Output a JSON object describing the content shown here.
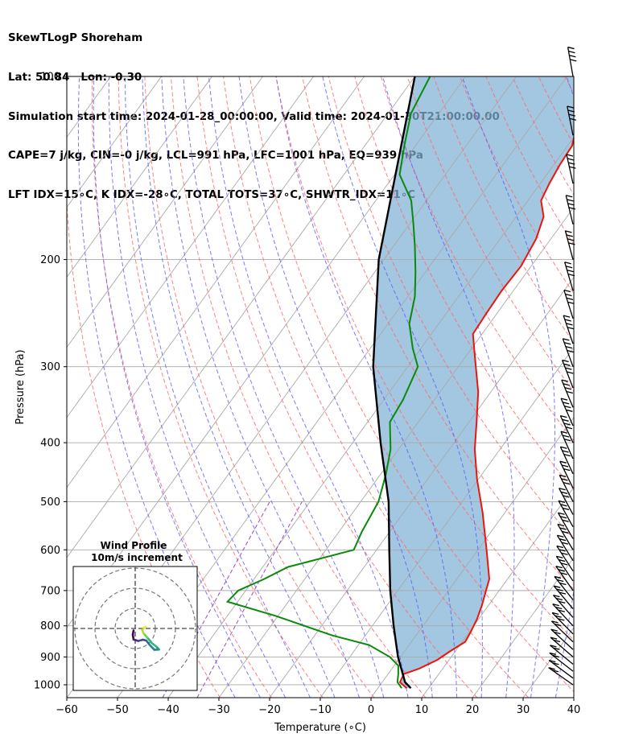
{
  "header": {
    "line1": "SkewTLogP Shoreham",
    "line2": "Lat: 50.84   Lon: -0.30",
    "line3": "Simulation start time: 2024-01-28_00:00:00, Valid time: 2024-01-30T21:00:00.00",
    "line4": "CAPE=7 j/kg, CIN=-0 j/kg, LCL=991 hPa, LFC=1001 hPa, EQ=939 hPa",
    "line5": "LFT IDX=15∘C, K IDX=-28∘C, TOTAL TOTS=37∘C, SHWTR_IDX=11∘C"
  },
  "chart_data": {
    "type": "line",
    "subtype": "skew-T log-P sounding",
    "xlabel": "Temperature (∘C)",
    "ylabel": "Pressure (hPa)",
    "xlim": [
      -60,
      40
    ],
    "ylim": [
      1050,
      100
    ],
    "y_scale": "log",
    "x_ticks": [
      -60,
      -50,
      -40,
      -30,
      -20,
      -10,
      0,
      10,
      20,
      30,
      40
    ],
    "y_ticks": [
      100,
      200,
      300,
      400,
      500,
      600,
      700,
      800,
      900,
      1000
    ],
    "grid": true,
    "colors": {
      "temperature": "#e8160c",
      "dewpoint": "#0a8a0a",
      "parcel": "#000000",
      "cape_fill": "#7fb0d6",
      "dry_adiabat": "#ff6a6a",
      "moist_adiabat": "#5a5aff",
      "mixing_ratio": "#9a4bc8",
      "isotherm": "#aaaaaa"
    },
    "series": [
      {
        "key": "temperature",
        "points": [
          [
            5.7,
            1013
          ],
          [
            3.5,
            990
          ],
          [
            3.1,
            960
          ],
          [
            5.4,
            940
          ],
          [
            7.7,
            910
          ],
          [
            9.0,
            880
          ],
          [
            10.6,
            850
          ],
          [
            10.3,
            820
          ],
          [
            9.7,
            780
          ],
          [
            8.7,
            740
          ],
          [
            7.4,
            700
          ],
          [
            6.4,
            670
          ],
          [
            1.7,
            600
          ],
          [
            -4.5,
            520
          ],
          [
            -10.2,
            460
          ],
          [
            -15.0,
            410
          ],
          [
            -18.5,
            370
          ],
          [
            -22.5,
            330
          ],
          [
            -28.0,
            290
          ],
          [
            -31.8,
            265
          ],
          [
            -32.1,
            245
          ],
          [
            -32.3,
            225
          ],
          [
            -32.0,
            205
          ],
          [
            -32.9,
            185
          ],
          [
            -34.6,
            170
          ],
          [
            -37.4,
            160
          ],
          [
            -38.2,
            150
          ],
          [
            -38.8,
            140
          ],
          [
            -39.1,
            130
          ],
          [
            -42.3,
            115
          ],
          [
            -44.5,
            100
          ]
        ]
      },
      {
        "key": "dewpoint",
        "points": [
          [
            4.7,
            1013
          ],
          [
            3.0,
            990
          ],
          [
            2.0,
            960
          ],
          [
            0.8,
            930
          ],
          [
            -2.1,
            900
          ],
          [
            -7.9,
            860
          ],
          [
            -16.4,
            830
          ],
          [
            -30.6,
            770
          ],
          [
            -42.0,
            730
          ],
          [
            -41.5,
            700
          ],
          [
            -38.0,
            670
          ],
          [
            -35.0,
            640
          ],
          [
            -24.5,
            600
          ],
          [
            -25.5,
            560
          ],
          [
            -26.5,
            500
          ],
          [
            -29.0,
            450
          ],
          [
            -31.6,
            410
          ],
          [
            -35.6,
            370
          ],
          [
            -36.2,
            340
          ],
          [
            -38.0,
            300
          ],
          [
            -41.6,
            280
          ],
          [
            -45.8,
            255
          ],
          [
            -48.6,
            230
          ],
          [
            -51.9,
            210
          ],
          [
            -55.8,
            190
          ],
          [
            -59.2,
            175
          ],
          [
            -63.0,
            160
          ],
          [
            -69.0,
            145
          ],
          [
            -72.2,
            130
          ],
          [
            -75.5,
            115
          ],
          [
            -77.0,
            100
          ]
        ]
      },
      {
        "key": "parcel",
        "points": [
          [
            6.5,
            1013
          ],
          [
            4.5,
            990
          ],
          [
            -0.5,
            900
          ],
          [
            -5.8,
            800
          ],
          [
            -11.5,
            700
          ],
          [
            -17.5,
            600
          ],
          [
            -24.5,
            500
          ],
          [
            -34.5,
            400
          ],
          [
            -46.8,
            300
          ],
          [
            -61.0,
            200
          ],
          [
            -80.0,
            100
          ]
        ]
      }
    ],
    "wind_barbs_right": true,
    "hodograph": {
      "title": "Wind Profile",
      "subtitle": "10m/s increment",
      "colormap": "viridis",
      "points": [
        [
          -0.8,
          -1.0
        ],
        [
          -1.2,
          -3.0
        ],
        [
          -0.8,
          -5.5
        ],
        [
          1.5,
          -6.2
        ],
        [
          3.8,
          -5.6
        ],
        [
          5.5,
          -6.0
        ],
        [
          7.2,
          -8.2
        ],
        [
          9.5,
          -10.6
        ],
        [
          11.8,
          -10.5
        ],
        [
          10.5,
          -9.0
        ],
        [
          8.2,
          -7.2
        ],
        [
          6.0,
          -4.5
        ],
        [
          4.2,
          -2.5
        ],
        [
          3.5,
          -0.8
        ],
        [
          4.5,
          0.5
        ],
        [
          5.2,
          1.0
        ]
      ]
    }
  }
}
